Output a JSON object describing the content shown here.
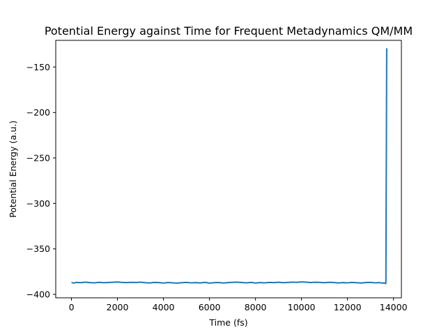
{
  "chart_data": {
    "type": "line",
    "title": "Potential Energy against Time for Frequent Metadynamics QM/MM",
    "xlabel": "Time (fs)",
    "ylabel": "Potential Energy (a.u.)",
    "xlim": [
      -683,
      14343
    ],
    "ylim": [
      -403.8,
      -120.7
    ],
    "xticks": [
      0,
      2000,
      4000,
      6000,
      8000,
      10000,
      12000,
      14000
    ],
    "xtick_labels": [
      "0",
      "2000",
      "4000",
      "6000",
      "8000",
      "10000",
      "12000",
      "14000"
    ],
    "yticks": [
      -150,
      -200,
      -250,
      -300,
      -350,
      -400
    ],
    "ytick_labels": [
      "−150",
      "−200",
      "−250",
      "−300",
      "−350",
      "−400"
    ],
    "grid": false,
    "color": "#1f77b4",
    "series": [
      {
        "x": [
          0,
          100,
          200,
          400,
          600,
          800,
          1000,
          1200,
          1400,
          1600,
          1800,
          2000,
          2200,
          2400,
          2600,
          2800,
          3000,
          3200,
          3400,
          3600,
          3800,
          4000,
          4200,
          4400,
          4600,
          4800,
          5000,
          5200,
          5400,
          5600,
          5800,
          6000,
          6200,
          6400,
          6600,
          6800,
          7000,
          7200,
          7400,
          7600,
          7800,
          8000,
          8200,
          8400,
          8600,
          8800,
          9000,
          9200,
          9400,
          9600,
          9800,
          10000,
          10200,
          10400,
          10600,
          10800,
          11000,
          11200,
          11400,
          11600,
          11800,
          12000,
          12200,
          12400,
          12600,
          12800,
          13000,
          13200,
          13400,
          13500,
          13600,
          13640,
          13660,
          13670,
          13680,
          13690,
          13700,
          13705,
          13710
        ],
        "y": [
          -387,
          -387.6,
          -386.9,
          -387.2,
          -386.6,
          -387.1,
          -387.3,
          -386.8,
          -387.2,
          -387.0,
          -386.7,
          -386.4,
          -386.9,
          -387.1,
          -386.8,
          -387.0,
          -386.6,
          -387.2,
          -387.4,
          -386.9,
          -387.1,
          -387.5,
          -387.0,
          -387.3,
          -387.6,
          -387.2,
          -386.9,
          -387.3,
          -387.1,
          -387.4,
          -386.8,
          -387.6,
          -387.2,
          -387.0,
          -387.5,
          -387.1,
          -386.8,
          -386.6,
          -387.0,
          -387.3,
          -386.9,
          -387.5,
          -387.1,
          -387.3,
          -386.9,
          -387.1,
          -386.7,
          -387.2,
          -386.9,
          -386.6,
          -386.8,
          -386.3,
          -386.6,
          -387.0,
          -386.7,
          -386.9,
          -387.2,
          -386.8,
          -387.0,
          -387.4,
          -387.1,
          -387.3,
          -386.9,
          -387.2,
          -387.5,
          -387.0,
          -386.9,
          -387.3,
          -387.1,
          -387.6,
          -387.4,
          -387.8,
          -388.2,
          -386.9,
          -300,
          -240,
          -160,
          -130,
          -132
        ]
      }
    ]
  }
}
